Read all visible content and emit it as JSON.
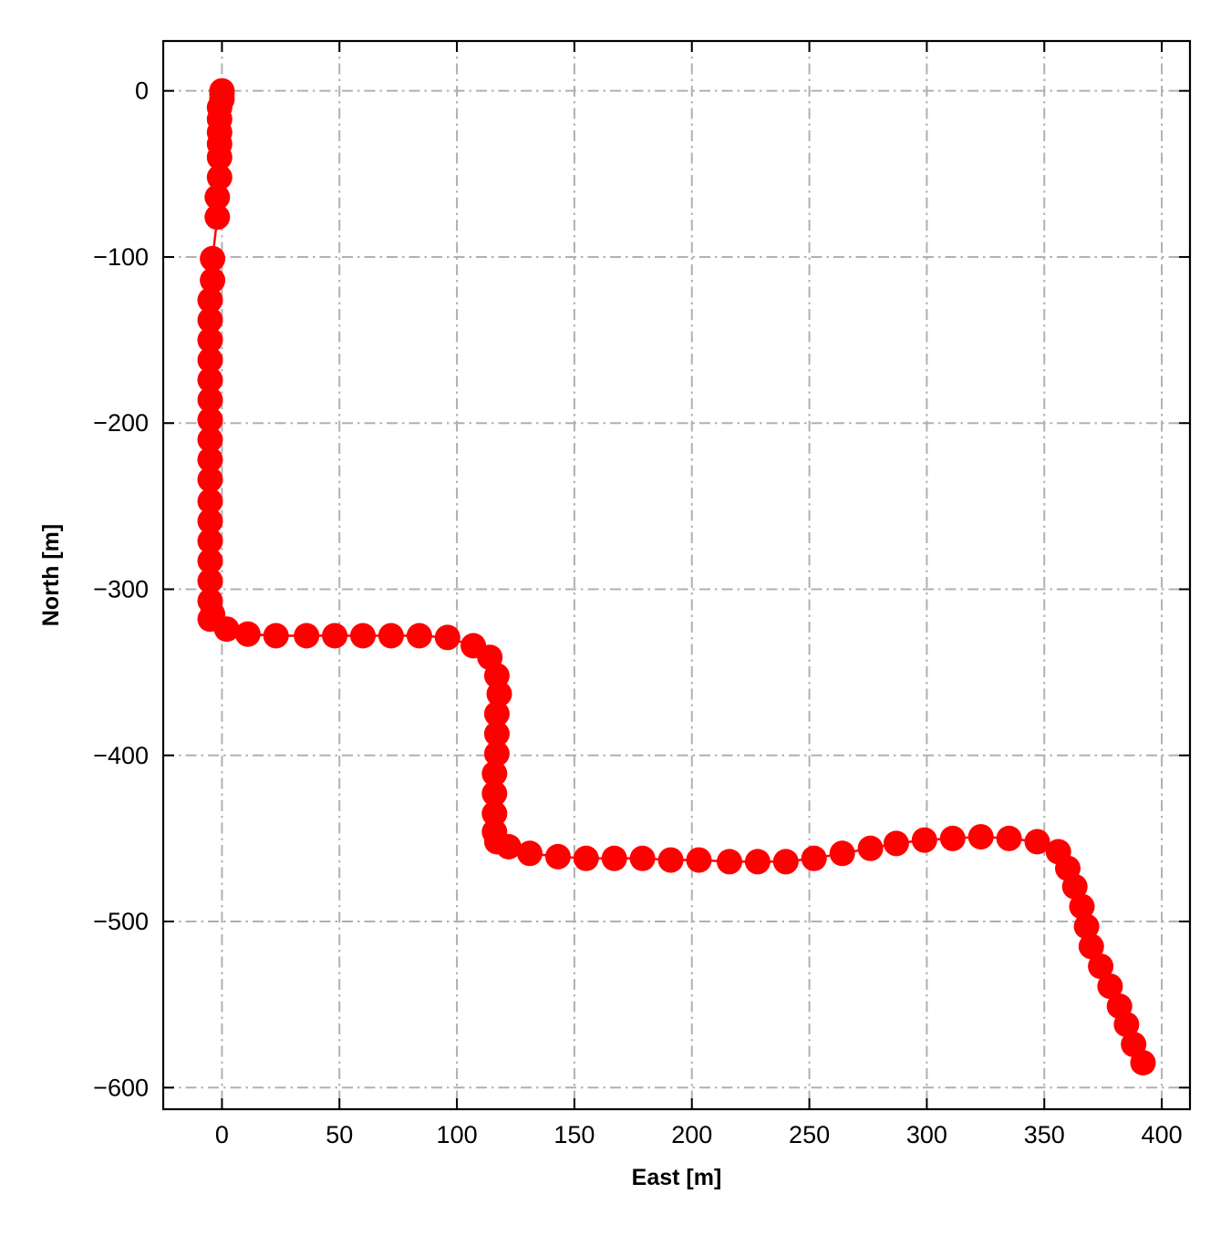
{
  "chart_data": {
    "type": "line",
    "title": "",
    "xlabel": "East [m]",
    "ylabel": "North [m]",
    "xlim": [
      -25,
      412
    ],
    "ylim": [
      -613,
      30
    ],
    "xticks": [
      0,
      50,
      100,
      150,
      200,
      250,
      300,
      350,
      400
    ],
    "yticks": [
      0,
      -100,
      -200,
      -300,
      -400,
      -500,
      -600
    ],
    "xtick_labels": [
      "0",
      "50",
      "100",
      "150",
      "200",
      "250",
      "300",
      "350",
      "400"
    ],
    "ytick_labels": [
      "0",
      "−100",
      "−200",
      "−300",
      "−400",
      "−500",
      "−600"
    ],
    "grid": true,
    "grid_style": "dash-dot",
    "legend": "none",
    "marker": "circle",
    "colors": {
      "series": "#ff0000",
      "grid": "#b0b0b0",
      "frame": "#000000"
    },
    "series": [
      {
        "x": [
          0,
          0,
          0,
          -1,
          -1,
          -1,
          -1,
          -1,
          -1,
          -2,
          -2,
          -4,
          -4,
          -5,
          -5,
          -5,
          -5,
          -5,
          -5,
          -5,
          -5,
          -5,
          -5,
          -5,
          -5,
          -5,
          -5,
          -5,
          -5,
          -5,
          -4,
          2,
          11,
          23,
          36,
          48,
          60,
          72,
          84,
          96,
          107,
          114,
          117,
          118,
          117,
          117,
          117,
          116,
          116,
          116,
          116,
          117,
          122,
          131,
          143,
          155,
          167,
          179,
          191,
          203,
          216,
          228,
          240,
          252,
          264,
          276,
          287,
          299,
          311,
          323,
          335,
          347,
          356,
          360,
          363,
          366,
          368,
          370,
          374,
          378,
          382,
          385,
          388,
          392
        ],
        "y": [
          0,
          -2,
          -5,
          -10,
          -17,
          -25,
          -32,
          -40,
          -52,
          -64,
          -76,
          -101,
          -114,
          -126,
          -138,
          -150,
          -162,
          -174,
          -186,
          -198,
          -210,
          -222,
          -234,
          -247,
          -259,
          -271,
          -283,
          -295,
          -307,
          -318,
          -315,
          -324,
          -327,
          -328,
          -328,
          -328,
          -328,
          -328,
          -328,
          -329,
          -334,
          -341,
          -352,
          -363,
          -375,
          -387,
          -399,
          -411,
          -423,
          -435,
          -446,
          -452,
          -455,
          -459,
          -461,
          -462,
          -462,
          -462,
          -463,
          -463,
          -464,
          -464,
          -464,
          -462,
          -459,
          -456,
          -453,
          -451,
          -450,
          -449,
          -450,
          -452,
          -458,
          -468,
          -479,
          -491,
          -503,
          -515,
          -527,
          -539,
          -551,
          -562,
          -574,
          -585
        ]
      }
    ]
  }
}
